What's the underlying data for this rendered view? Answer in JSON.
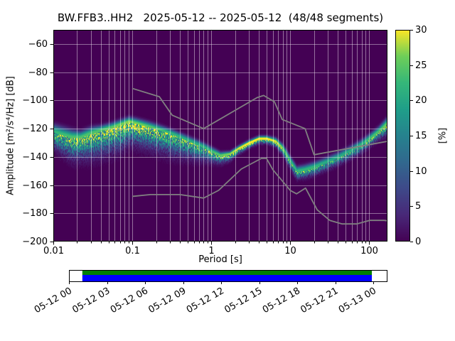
{
  "chart_data": {
    "type": "heatmap",
    "subtype": "ppsd-probabilistic-power-spectral-density",
    "title": "BW.FFB3..HH2   2025-05-12 -- 2025-05-12  (48/48 segments)",
    "xlabel": "Period [s]",
    "ylabel": "Amplitude [m²/s⁴/Hz] [dB]",
    "x_scale": "log",
    "xlim": [
      0.01,
      170
    ],
    "ylim": [
      -200,
      -50
    ],
    "x_ticks": [
      0.01,
      0.1,
      1,
      10,
      100
    ],
    "x_tick_labels": [
      "0.01",
      "0.1",
      "1",
      "10",
      "100"
    ],
    "y_ticks": [
      -60,
      -80,
      -100,
      -120,
      -140,
      -160,
      -180,
      -200
    ],
    "y_tick_labels": [
      "−60",
      "−80",
      "−100",
      "−120",
      "−140",
      "−160",
      "−180",
      "−200"
    ],
    "grid": true,
    "background_color": "#440154",
    "grid_color": "#ffffff",
    "colorbar": {
      "label": "[%]",
      "min": 0,
      "max": 30,
      "ticks": [
        0,
        5,
        10,
        15,
        20,
        25,
        30
      ],
      "tick_labels": [
        "0",
        "5",
        "10",
        "15",
        "20",
        "25",
        "30"
      ],
      "colormap": "viridis",
      "colormap_stops": [
        "#440154",
        "#482878",
        "#3e4989",
        "#31688e",
        "#26828e",
        "#1f9e89",
        "#35b779",
        "#6ece58",
        "#fde725"
      ]
    },
    "ppsd_mode": {
      "periods": [
        0.01,
        0.013,
        0.017,
        0.022,
        0.03,
        0.04,
        0.055,
        0.07,
        0.09,
        0.11,
        0.15,
        0.2,
        0.3,
        0.45,
        0.6,
        0.8,
        1.0,
        1.3,
        1.7,
        2.2,
        3.0,
        4.0,
        5.0,
        6.5,
        8.0,
        10,
        12,
        15,
        20,
        30,
        40,
        60,
        80,
        100,
        130,
        170
      ],
      "db": [
        -122,
        -124,
        -126,
        -126,
        -123,
        -121,
        -119,
        -117,
        -115,
        -116,
        -118,
        -120,
        -123,
        -127,
        -130,
        -133,
        -136,
        -139,
        -138,
        -134,
        -130,
        -127,
        -127,
        -129,
        -134,
        -143,
        -150,
        -149,
        -147,
        -143,
        -140,
        -135,
        -131,
        -127,
        -122,
        -116
      ],
      "spread_below_db": [
        6,
        7,
        8,
        8,
        9,
        9,
        9,
        9,
        8,
        8,
        8,
        8,
        8,
        7,
        6,
        5,
        4,
        3,
        2.5,
        2,
        1.8,
        1.8,
        1.8,
        2,
        2.5,
        3,
        3,
        3,
        3,
        3,
        3,
        3,
        3,
        3,
        3,
        4
      ],
      "spread_above_db": [
        3,
        3,
        3,
        2.5,
        2.5,
        2,
        2,
        2,
        2,
        2,
        2,
        2,
        1.8,
        1.8,
        1.8,
        1.8,
        1.8,
        1.5,
        1.2,
        1.2,
        1.2,
        1.2,
        1.2,
        1.5,
        1.8,
        2,
        2,
        2,
        2,
        2,
        2,
        2,
        2,
        2,
        2,
        2.5
      ],
      "peak_percent": [
        22,
        23,
        24,
        24,
        24,
        24,
        25,
        26,
        27,
        26,
        25,
        24,
        22,
        21,
        21,
        22,
        23,
        25,
        27,
        29,
        30,
        30,
        30,
        29,
        26,
        22,
        22,
        22,
        22,
        20,
        20,
        21,
        22,
        23,
        24,
        26
      ]
    },
    "noise_models": {
      "color": "#808080",
      "nhnm": {
        "periods": [
          0.1,
          0.22,
          0.32,
          0.8,
          3.8,
          4.6,
          6.3,
          7.9,
          15.4,
          20.0,
          170
        ],
        "db": [
          -91.5,
          -97.4,
          -110.5,
          -120.0,
          -98.0,
          -96.5,
          -101.0,
          -113.5,
          -120.0,
          -138.5,
          -129.0
        ]
      },
      "nlnm": {
        "periods": [
          0.1,
          0.17,
          0.4,
          0.8,
          1.24,
          2.4,
          4.3,
          5.0,
          6.0,
          10.0,
          12.0,
          15.6,
          21.9,
          31.6,
          45.0,
          70.0,
          101.0,
          154.0,
          170
        ],
        "db": [
          -168.0,
          -166.7,
          -166.7,
          -169.2,
          -163.7,
          -148.6,
          -141.1,
          -141.1,
          -149.0,
          -163.8,
          -166.2,
          -162.1,
          -177.5,
          -185.0,
          -187.5,
          -187.5,
          -185.0,
          -185.0,
          -185.3
        ]
      }
    },
    "timeline": {
      "tick_labels": [
        "05-12 00",
        "05-12 03",
        "05-12 06",
        "05-12 09",
        "05-12 12",
        "05-12 15",
        "05-12 18",
        "05-12 21",
        "05-13 00"
      ],
      "coverage": {
        "start_frac": 0.042,
        "end_frac": 0.951,
        "top_color": "#008000",
        "bottom_color": "#0000ff"
      }
    }
  }
}
